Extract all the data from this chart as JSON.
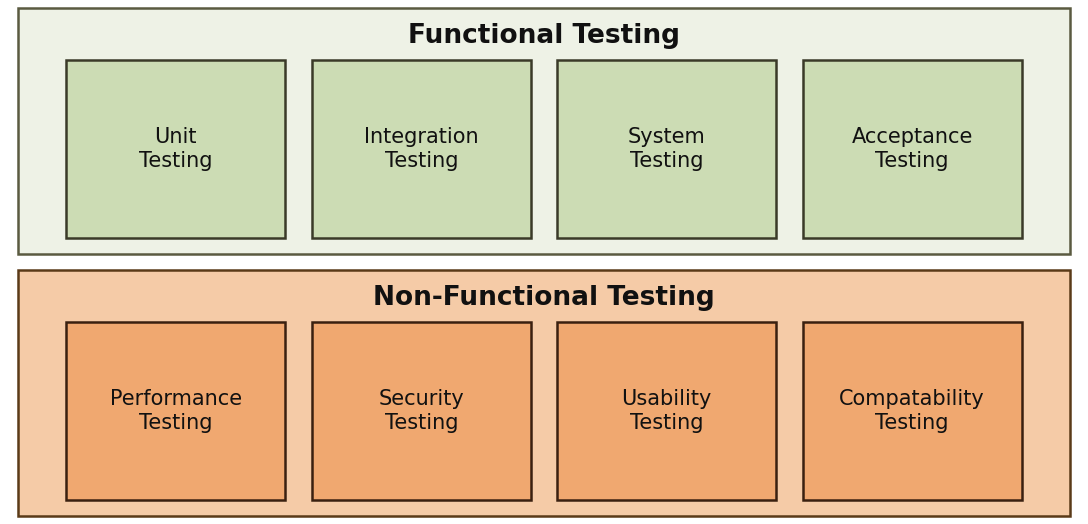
{
  "functional": {
    "title": "Functional Testing",
    "bg_color": "#eef2e6",
    "border_color": "#5a5a40",
    "box_bg_color": "#ccdcb4",
    "box_border_color": "#3a3a28",
    "items": [
      "Unit\nTesting",
      "Integration\nTesting",
      "System\nTesting",
      "Acceptance\nTesting"
    ]
  },
  "nonfunctional": {
    "title": "Non-Functional Testing",
    "bg_color": "#f5cba7",
    "border_color": "#5a3a18",
    "box_bg_color": "#f0a870",
    "box_border_color": "#3a2010",
    "items": [
      "Performance\nTesting",
      "Security\nTesting",
      "Usability\nTesting",
      "Compatability\nTesting"
    ]
  },
  "title_fontsize": 19,
  "item_fontsize": 15,
  "fig_bg_color": "#ffffff",
  "outer_border_color": "#888888"
}
